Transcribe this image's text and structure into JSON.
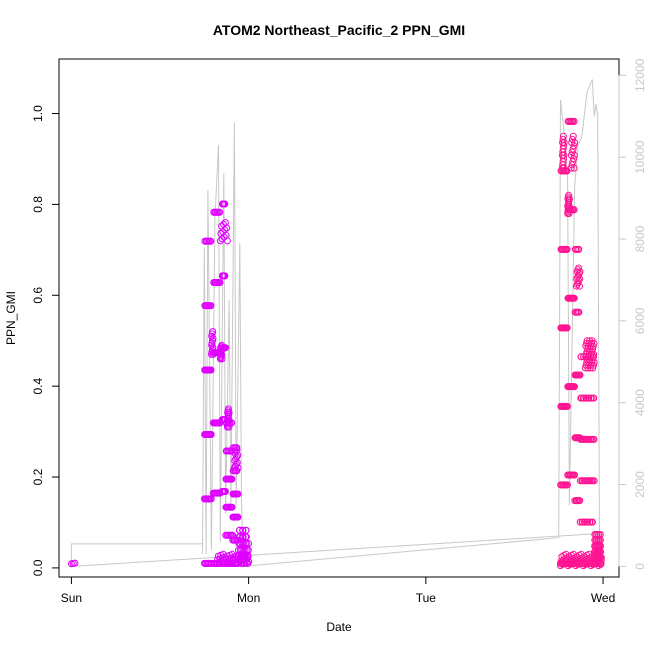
{
  "chart_data": {
    "type": "scatter",
    "title": "ATOM2 Northeast_Pacific_2 PPN_GMI",
    "xlabel": "Date",
    "ylabel": "PPN_GMI",
    "x_ticks": [
      "Sun",
      "Mon",
      "Tue",
      "Wed"
    ],
    "y_ticks": [
      "0.0",
      "0.2",
      "0.4",
      "0.6",
      "0.8",
      "1.0"
    ],
    "y2_ticks": [
      "0",
      "2000",
      "4000",
      "6000",
      "8000",
      "10000",
      "12000"
    ],
    "xlim_days": [
      -0.07,
      3.09
    ],
    "ylim": [
      -0.02,
      1.12
    ],
    "y2lim": [
      -260,
      12400
    ],
    "grid": false,
    "legend": "none",
    "colors": {
      "points_magenta": "#e000ff",
      "points_pink": "#ff1493",
      "altitude_line": "#c8c8c8",
      "right_axis": "#c8c8c8"
    },
    "series": [
      {
        "kind": "points",
        "segments": [
          {
            "color": "#e000ff",
            "x_start": 0.0,
            "x_end": 0.02,
            "n": 3,
            "pattern": "flat",
            "low": 0.009,
            "high": 0.011
          },
          {
            "color": "#e000ff",
            "x_start": 0.75,
            "x_end": 0.79,
            "n": 60,
            "pattern": "osc",
            "low": 0.01,
            "high": 0.79
          },
          {
            "color": "#e000ff",
            "x_start": 0.79,
            "x_end": 0.8,
            "n": 12,
            "pattern": "flat",
            "low": 0.47,
            "high": 0.52
          },
          {
            "color": "#e000ff",
            "x_start": 0.8,
            "x_end": 0.84,
            "n": 60,
            "pattern": "osc",
            "low": 0.01,
            "high": 0.86
          },
          {
            "color": "#e000ff",
            "x_start": 0.84,
            "x_end": 0.85,
            "n": 12,
            "pattern": "flat",
            "low": 0.46,
            "high": 0.49
          },
          {
            "color": "#e000ff",
            "x_start": 0.85,
            "x_end": 0.87,
            "n": 40,
            "pattern": "osc",
            "low": 0.01,
            "high": 0.88
          },
          {
            "color": "#e000ff",
            "x_start": 0.84,
            "x_end": 0.88,
            "n": 12,
            "pattern": "flat",
            "low": 0.72,
            "high": 0.76
          },
          {
            "color": "#e000ff",
            "x_start": 0.87,
            "x_end": 0.91,
            "n": 50,
            "pattern": "osc",
            "low": 0.01,
            "high": 0.35
          },
          {
            "color": "#e000ff",
            "x_start": 0.88,
            "x_end": 0.89,
            "n": 14,
            "pattern": "flat",
            "low": 0.31,
            "high": 0.35
          },
          {
            "color": "#e000ff",
            "x_start": 0.91,
            "x_end": 0.94,
            "n": 40,
            "pattern": "osc",
            "low": 0.01,
            "high": 0.29
          },
          {
            "color": "#e000ff",
            "x_start": 0.92,
            "x_end": 0.94,
            "n": 12,
            "pattern": "flat",
            "low": 0.22,
            "high": 0.26
          },
          {
            "color": "#e000ff",
            "x_start": 0.94,
            "x_end": 1.0,
            "n": 40,
            "pattern": "osc",
            "low": 0.01,
            "high": 0.09
          },
          {
            "color": "#e000ff",
            "x_start": 0.82,
            "x_end": 1.0,
            "n": 40,
            "pattern": "flat",
            "low": 0.01,
            "high": 0.03
          },
          {
            "color": "#ff1493",
            "x_start": 2.76,
            "x_end": 2.8,
            "n": 60,
            "pattern": "osc",
            "low": 0.01,
            "high": 0.96
          },
          {
            "color": "#ff1493",
            "x_start": 2.77,
            "x_end": 2.78,
            "n": 14,
            "pattern": "flat",
            "low": 0.88,
            "high": 0.95
          },
          {
            "color": "#ff1493",
            "x_start": 2.8,
            "x_end": 2.84,
            "n": 60,
            "pattern": "osc",
            "low": 0.01,
            "high": 1.08
          },
          {
            "color": "#ff1493",
            "x_start": 2.8,
            "x_end": 2.81,
            "n": 14,
            "pattern": "flat",
            "low": 0.78,
            "high": 0.82
          },
          {
            "color": "#ff1493",
            "x_start": 2.82,
            "x_end": 2.84,
            "n": 14,
            "pattern": "flat",
            "low": 0.88,
            "high": 0.95
          },
          {
            "color": "#ff1493",
            "x_start": 2.84,
            "x_end": 2.87,
            "n": 40,
            "pattern": "osc",
            "low": 0.01,
            "high": 0.77
          },
          {
            "color": "#ff1493",
            "x_start": 2.85,
            "x_end": 2.87,
            "n": 14,
            "pattern": "flat",
            "low": 0.62,
            "high": 0.66
          },
          {
            "color": "#ff1493",
            "x_start": 2.87,
            "x_end": 2.95,
            "n": 70,
            "pattern": "osc",
            "low": 0.01,
            "high": 0.51
          },
          {
            "color": "#ff1493",
            "x_start": 2.9,
            "x_end": 2.95,
            "n": 40,
            "pattern": "flat",
            "low": 0.44,
            "high": 0.5
          },
          {
            "color": "#ff1493",
            "x_start": 2.95,
            "x_end": 2.99,
            "n": 50,
            "pattern": "osc",
            "low": 0.01,
            "high": 0.08
          },
          {
            "color": "#ff1493",
            "x_start": 2.76,
            "x_end": 2.99,
            "n": 60,
            "pattern": "flat",
            "low": 0.005,
            "high": 0.03
          }
        ]
      },
      {
        "kind": "line",
        "axis": "right",
        "color": "#c8c8c8",
        "points": [
          [
            0.0,
            0
          ],
          [
            0.0,
            550
          ],
          [
            0.74,
            550
          ],
          [
            0.74,
            300
          ],
          [
            0.75,
            7800
          ],
          [
            0.76,
            300
          ],
          [
            0.77,
            9200
          ],
          [
            0.79,
            400
          ],
          [
            0.81,
            8500
          ],
          [
            0.83,
            10300
          ],
          [
            0.84,
            600
          ],
          [
            0.86,
            9600
          ],
          [
            0.87,
            1300
          ],
          [
            0.89,
            6500
          ],
          [
            0.9,
            1400
          ],
          [
            0.92,
            10850
          ],
          [
            0.93,
            1500
          ],
          [
            0.95,
            7900
          ],
          [
            0.96,
            1600
          ],
          [
            0.97,
            0
          ],
          [
            2.75,
            700
          ],
          [
            2.76,
            11400
          ],
          [
            2.78,
            10600
          ],
          [
            2.8,
            9500
          ],
          [
            2.81,
            1500
          ],
          [
            2.84,
            9300
          ],
          [
            2.86,
            10300
          ],
          [
            2.88,
            10500
          ],
          [
            2.91,
            11600
          ],
          [
            2.94,
            11900
          ],
          [
            2.95,
            11000
          ],
          [
            2.96,
            11300
          ],
          [
            2.97,
            11000
          ],
          [
            2.98,
            500
          ],
          [
            2.99,
            100
          ]
        ],
        "baseline": [
          [
            0.0,
            0
          ],
          [
            2.97,
            800
          ]
        ]
      }
    ]
  }
}
